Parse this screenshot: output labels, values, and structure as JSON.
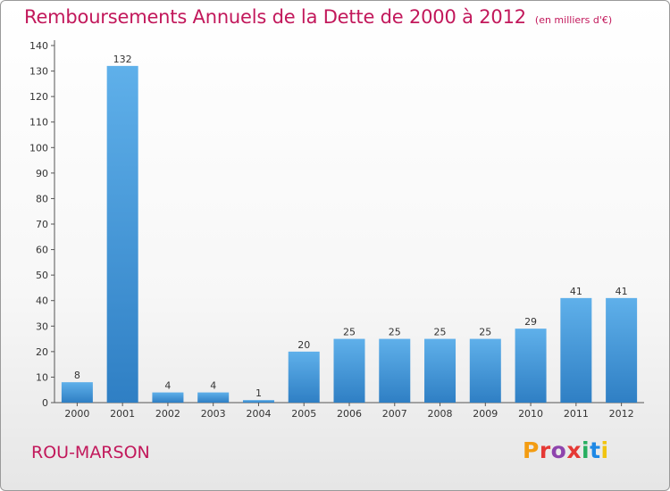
{
  "header": {
    "title": "Remboursements Annuels de la Dette de 2000 à 2012",
    "unit": "(en milliers d'€)"
  },
  "footer": {
    "commune": "ROU-MARSON",
    "logo_text": "Proxiti"
  },
  "colors": {
    "title": "#c2185b",
    "bar_top": "#5fb0ea",
    "bar_bottom": "#2f7fc4",
    "logo_letters": [
      "#f39c12",
      "#e53935",
      "#8e44ad",
      "#e53935",
      "#27ae60",
      "#1e88e5",
      "#f1c40f"
    ]
  },
  "chart_data": {
    "type": "bar",
    "title": "Remboursements Annuels de la Dette de 2000 à 2012",
    "subtitle": "(en milliers d'€)",
    "categories": [
      "2000",
      "2001",
      "2002",
      "2003",
      "2004",
      "2005",
      "2006",
      "2007",
      "2008",
      "2009",
      "2010",
      "2011",
      "2012"
    ],
    "values": [
      8,
      132,
      4,
      4,
      1,
      20,
      25,
      25,
      25,
      25,
      29,
      41,
      41
    ],
    "ylim": [
      0,
      140
    ],
    "yticks": [
      0,
      10,
      20,
      30,
      40,
      50,
      60,
      70,
      80,
      90,
      100,
      110,
      120,
      130,
      140
    ],
    "grid": false,
    "legend": "none"
  }
}
